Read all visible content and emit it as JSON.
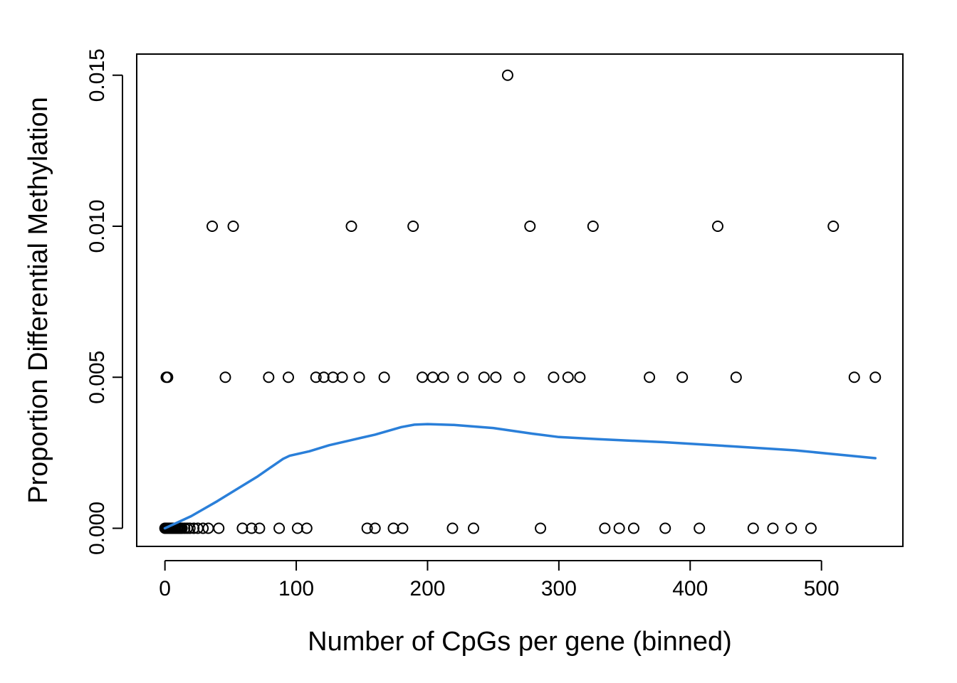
{
  "chart_data": {
    "type": "scatter",
    "title": "",
    "xlabel": "Number of CpGs per gene (binned)",
    "ylabel": "Proportion Differential Methylation",
    "xlim": [
      -21.5,
      562
    ],
    "ylim": [
      -0.0006,
      0.0157
    ],
    "xticks": [
      0,
      100,
      200,
      300,
      400,
      500
    ],
    "xtick_labels": [
      "0",
      "100",
      "200",
      "300",
      "400",
      "500"
    ],
    "yticks": [
      0,
      0.005,
      0.01,
      0.015
    ],
    "ytick_labels": [
      "0.000",
      "0.005",
      "0.010",
      "0.015"
    ],
    "grid": false,
    "legend": "none",
    "colors": {
      "points": "#000000",
      "fit_line": "#2a7fd9"
    },
    "points": [
      {
        "x": 1,
        "y": 0.005
      },
      {
        "x": 2,
        "y": 0.005
      },
      {
        "x": 0,
        "y": 0
      },
      {
        "x": 1,
        "y": 0
      },
      {
        "x": 2,
        "y": 0
      },
      {
        "x": 3,
        "y": 0
      },
      {
        "x": 4,
        "y": 0
      },
      {
        "x": 5,
        "y": 0
      },
      {
        "x": 6,
        "y": 0
      },
      {
        "x": 7,
        "y": 0
      },
      {
        "x": 8,
        "y": 0
      },
      {
        "x": 9,
        "y": 0
      },
      {
        "x": 10,
        "y": 0
      },
      {
        "x": 11,
        "y": 0
      },
      {
        "x": 12,
        "y": 0
      },
      {
        "x": 13,
        "y": 0
      },
      {
        "x": 15,
        "y": 0
      },
      {
        "x": 17,
        "y": 0
      },
      {
        "x": 19,
        "y": 0
      },
      {
        "x": 22,
        "y": 0
      },
      {
        "x": 25,
        "y": 0
      },
      {
        "x": 29,
        "y": 0
      },
      {
        "x": 33,
        "y": 0
      },
      {
        "x": 41,
        "y": 0
      },
      {
        "x": 59,
        "y": 0
      },
      {
        "x": 66,
        "y": 0
      },
      {
        "x": 72,
        "y": 0
      },
      {
        "x": 87,
        "y": 0
      },
      {
        "x": 101,
        "y": 0
      },
      {
        "x": 108,
        "y": 0
      },
      {
        "x": 154,
        "y": 0
      },
      {
        "x": 160,
        "y": 0
      },
      {
        "x": 174,
        "y": 0
      },
      {
        "x": 181,
        "y": 0
      },
      {
        "x": 219,
        "y": 0
      },
      {
        "x": 235,
        "y": 0
      },
      {
        "x": 286,
        "y": 0
      },
      {
        "x": 335,
        "y": 0
      },
      {
        "x": 346,
        "y": 0
      },
      {
        "x": 357,
        "y": 0
      },
      {
        "x": 381,
        "y": 0
      },
      {
        "x": 407,
        "y": 0
      },
      {
        "x": 448,
        "y": 0
      },
      {
        "x": 463,
        "y": 0
      },
      {
        "x": 477,
        "y": 0
      },
      {
        "x": 492,
        "y": 0
      },
      {
        "x": 46,
        "y": 0.005
      },
      {
        "x": 79,
        "y": 0.005
      },
      {
        "x": 94,
        "y": 0.005
      },
      {
        "x": 115,
        "y": 0.005
      },
      {
        "x": 121,
        "y": 0.005
      },
      {
        "x": 128,
        "y": 0.005
      },
      {
        "x": 135,
        "y": 0.005
      },
      {
        "x": 148,
        "y": 0.005
      },
      {
        "x": 167,
        "y": 0.005
      },
      {
        "x": 196,
        "y": 0.005
      },
      {
        "x": 204,
        "y": 0.005
      },
      {
        "x": 212,
        "y": 0.005
      },
      {
        "x": 227,
        "y": 0.005
      },
      {
        "x": 243,
        "y": 0.005
      },
      {
        "x": 252,
        "y": 0.005
      },
      {
        "x": 270,
        "y": 0.005
      },
      {
        "x": 296,
        "y": 0.005
      },
      {
        "x": 307,
        "y": 0.005
      },
      {
        "x": 316,
        "y": 0.005
      },
      {
        "x": 369,
        "y": 0.005
      },
      {
        "x": 394,
        "y": 0.005
      },
      {
        "x": 435,
        "y": 0.005
      },
      {
        "x": 525,
        "y": 0.005
      },
      {
        "x": 541,
        "y": 0.005
      },
      {
        "x": 36,
        "y": 0.01
      },
      {
        "x": 52,
        "y": 0.01
      },
      {
        "x": 142,
        "y": 0.01
      },
      {
        "x": 189,
        "y": 0.01
      },
      {
        "x": 278,
        "y": 0.01
      },
      {
        "x": 326,
        "y": 0.01
      },
      {
        "x": 421,
        "y": 0.01
      },
      {
        "x": 509,
        "y": 0.01
      },
      {
        "x": 261,
        "y": 0.015
      }
    ],
    "fit_line": [
      {
        "x": 0,
        "y": 0
      },
      {
        "x": 10,
        "y": 0.0002
      },
      {
        "x": 20,
        "y": 0.0004
      },
      {
        "x": 30,
        "y": 0.00065
      },
      {
        "x": 40,
        "y": 0.0009
      },
      {
        "x": 55,
        "y": 0.0013
      },
      {
        "x": 70,
        "y": 0.0017
      },
      {
        "x": 80,
        "y": 0.002
      },
      {
        "x": 90,
        "y": 0.0023
      },
      {
        "x": 95,
        "y": 0.0024
      },
      {
        "x": 110,
        "y": 0.00255
      },
      {
        "x": 125,
        "y": 0.00275
      },
      {
        "x": 140,
        "y": 0.0029
      },
      {
        "x": 160,
        "y": 0.0031
      },
      {
        "x": 180,
        "y": 0.00335
      },
      {
        "x": 190,
        "y": 0.00343
      },
      {
        "x": 200,
        "y": 0.00345
      },
      {
        "x": 220,
        "y": 0.00342
      },
      {
        "x": 250,
        "y": 0.00332
      },
      {
        "x": 280,
        "y": 0.00313
      },
      {
        "x": 300,
        "y": 0.00302
      },
      {
        "x": 330,
        "y": 0.00295
      },
      {
        "x": 380,
        "y": 0.00285
      },
      {
        "x": 430,
        "y": 0.00272
      },
      {
        "x": 480,
        "y": 0.00258
      },
      {
        "x": 541,
        "y": 0.00232
      }
    ]
  }
}
